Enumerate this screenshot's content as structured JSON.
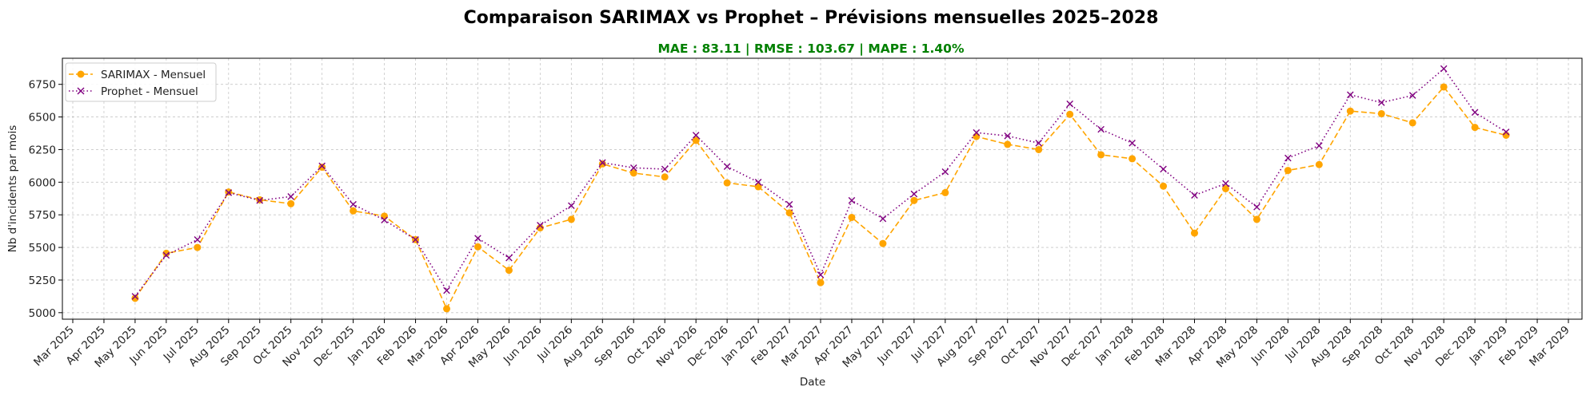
{
  "colors": {
    "sarimax": "#FFA500",
    "prophet": "#800080",
    "subtitle": "#008000"
  },
  "chart_data": {
    "type": "line",
    "title": "Comparaison SARIMAX vs Prophet – Prévisions mensuelles 2025–2028",
    "subtitle": "MAE : 83.11 | RMSE : 103.67 | MAPE : 1.40%",
    "xlabel": "Date",
    "ylabel": "Nb d'incidents par mois",
    "ylim": [
      4950,
      6950
    ],
    "yticks": [
      5000,
      5250,
      5500,
      5750,
      6000,
      6250,
      6500,
      6750
    ],
    "xticks": [
      "Mar 2025",
      "Apr 2025",
      "May 2025",
      "Jun 2025",
      "Jul 2025",
      "Aug 2025",
      "Sep 2025",
      "Oct 2025",
      "Nov 2025",
      "Dec 2025",
      "Jan 2026",
      "Feb 2026",
      "Mar 2026",
      "Apr 2026",
      "May 2026",
      "Jun 2026",
      "Jul 2026",
      "Aug 2026",
      "Sep 2026",
      "Oct 2026",
      "Nov 2026",
      "Dec 2026",
      "Jan 2027",
      "Feb 2027",
      "Mar 2027",
      "Apr 2027",
      "May 2027",
      "Jun 2027",
      "Jul 2027",
      "Aug 2027",
      "Sep 2027",
      "Oct 2027",
      "Nov 2027",
      "Dec 2027",
      "Jan 2028",
      "Feb 2028",
      "Mar 2028",
      "Apr 2028",
      "May 2028",
      "Jun 2028",
      "Jul 2028",
      "Aug 2028",
      "Sep 2028",
      "Oct 2028",
      "Nov 2028",
      "Dec 2028",
      "Jan 2029",
      "Feb 2029",
      "Mar 2029"
    ],
    "grid": true,
    "legend_position": "upper-left",
    "x": [
      "May 2025",
      "Jun 2025",
      "Jul 2025",
      "Aug 2025",
      "Sep 2025",
      "Oct 2025",
      "Nov 2025",
      "Dec 2025",
      "Jan 2026",
      "Feb 2026",
      "Mar 2026",
      "Apr 2026",
      "May 2026",
      "Jun 2026",
      "Jul 2026",
      "Aug 2026",
      "Sep 2026",
      "Oct 2026",
      "Nov 2026",
      "Dec 2026",
      "Jan 2027",
      "Feb 2027",
      "Mar 2027",
      "Apr 2027",
      "May 2027",
      "Jun 2027",
      "Jul 2027",
      "Aug 2027",
      "Sep 2027",
      "Oct 2027",
      "Nov 2027",
      "Dec 2027",
      "Jan 2028",
      "Feb 2028",
      "Mar 2028",
      "Apr 2028",
      "May 2028",
      "Jun 2028",
      "Jul 2028",
      "Aug 2028",
      "Sep 2028",
      "Oct 2028",
      "Nov 2028",
      "Dec 2028",
      "Jan 2029"
    ],
    "series": [
      {
        "name": "SARIMAX - Mensuel",
        "style": "dashed",
        "marker": "circle",
        "color": "#FFA500",
        "values": [
          5110,
          5455,
          5500,
          5925,
          5865,
          5835,
          6115,
          5780,
          5740,
          5560,
          5030,
          5505,
          5325,
          5650,
          5715,
          6140,
          6070,
          6040,
          6320,
          5995,
          5965,
          5765,
          5230,
          5730,
          5530,
          5860,
          5920,
          6350,
          6290,
          6250,
          6520,
          6210,
          6180,
          5970,
          5610,
          5950,
          5715,
          6090,
          6135,
          6545,
          6525,
          6455,
          6730,
          6420,
          6360
        ]
      },
      {
        "name": "Prophet - Mensuel",
        "style": "dotted",
        "marker": "x",
        "color": "#800080",
        "values": [
          5125,
          5440,
          5560,
          5920,
          5860,
          5890,
          6125,
          5830,
          5710,
          5560,
          5170,
          5570,
          5420,
          5670,
          5820,
          6150,
          6110,
          6100,
          6360,
          6120,
          6000,
          5830,
          5290,
          5860,
          5720,
          5910,
          6080,
          6380,
          6355,
          6300,
          6600,
          6405,
          6300,
          6100,
          5900,
          5990,
          5810,
          6185,
          6280,
          6670,
          6610,
          6665,
          6870,
          6535,
          6385
        ]
      }
    ]
  }
}
